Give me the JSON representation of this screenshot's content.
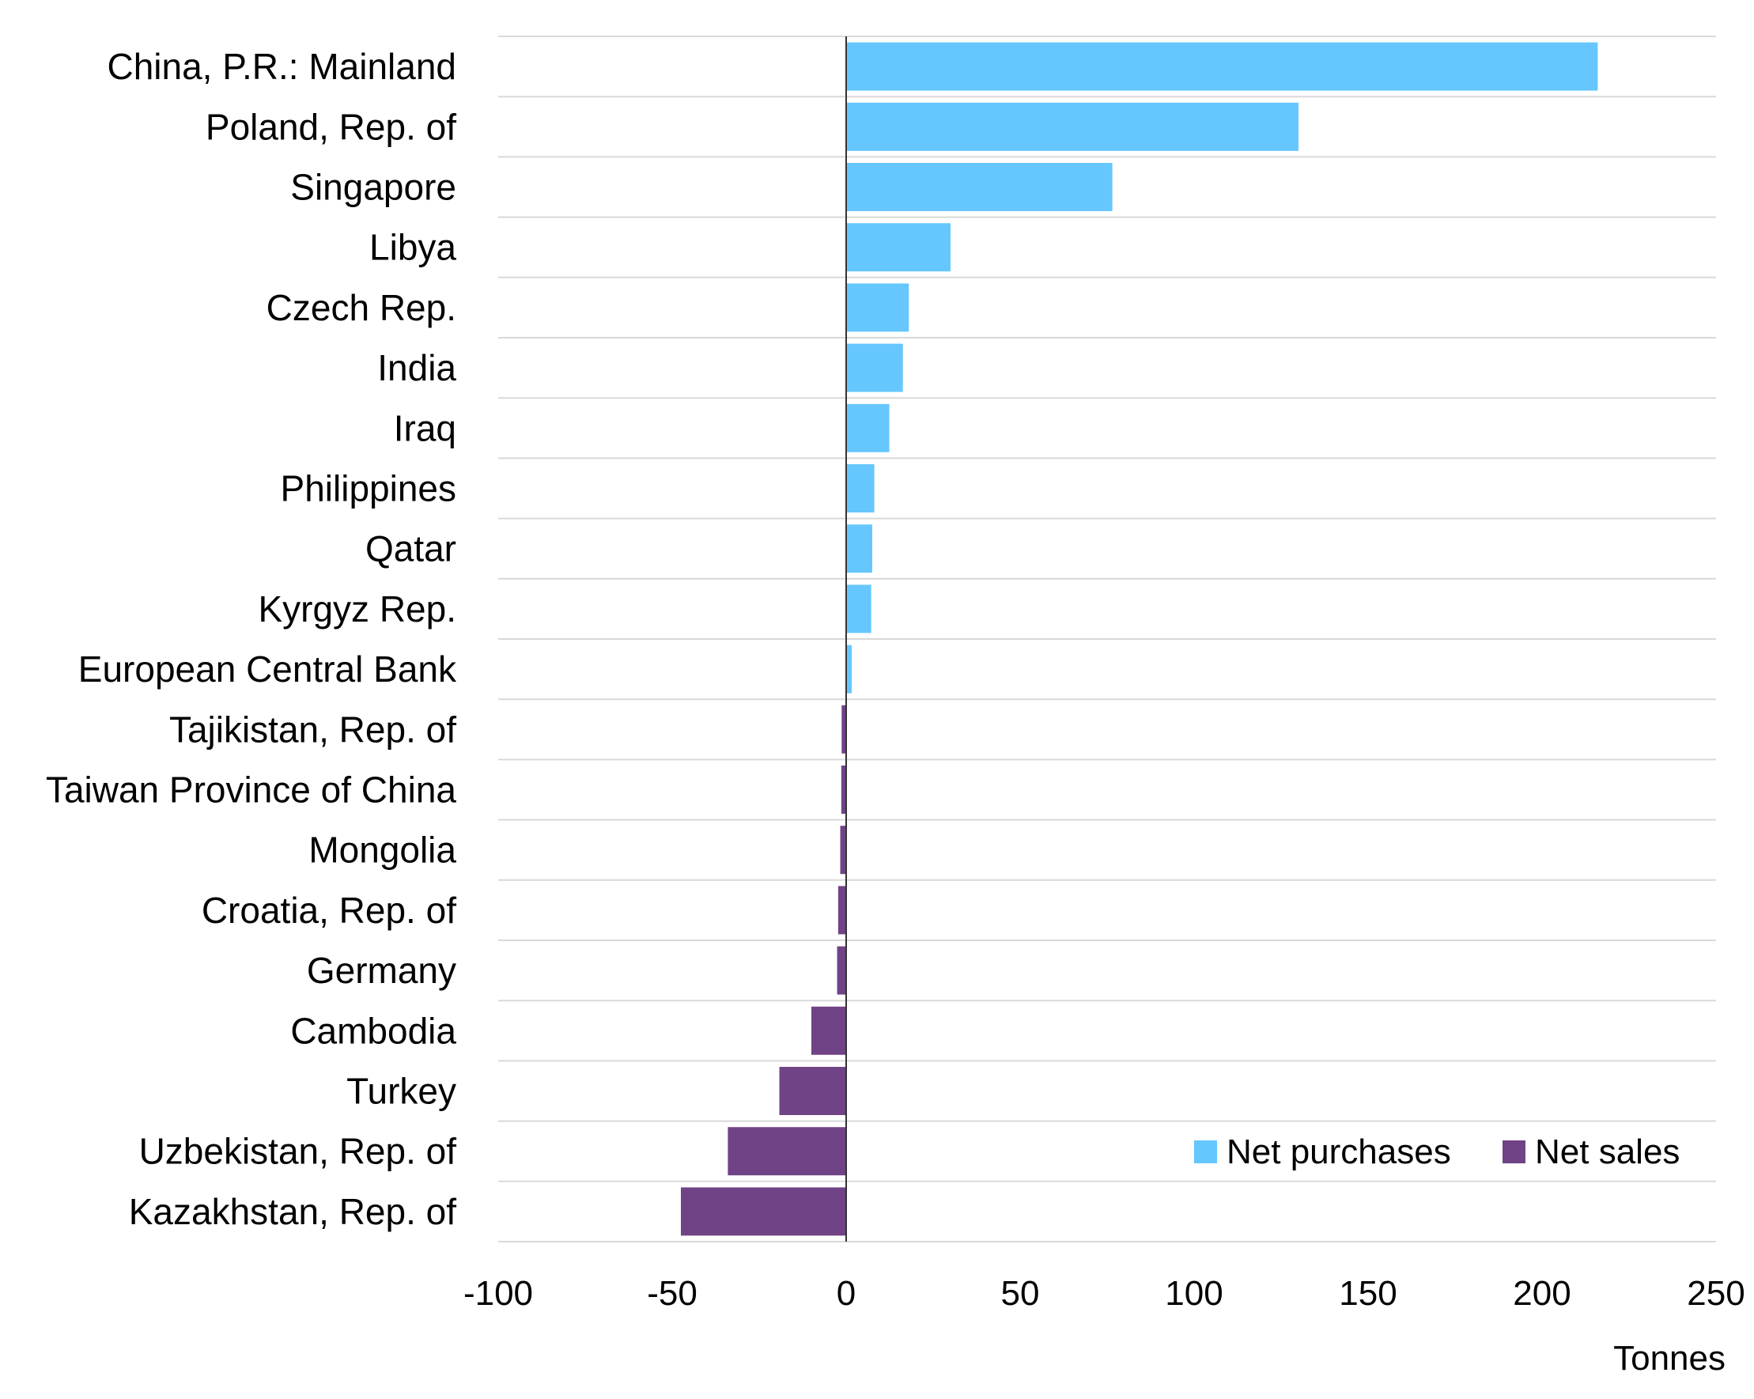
{
  "chart_data": {
    "type": "bar",
    "orientation": "horizontal",
    "title": "",
    "xlabel": "Tonnes",
    "ylabel": "",
    "xlim": [
      -100,
      250
    ],
    "xticks": [
      -100,
      -50,
      0,
      50,
      100,
      150,
      200,
      250
    ],
    "xtick_labels": [
      "-100",
      "-50",
      "0",
      "50",
      "100",
      "150",
      "200",
      "250"
    ],
    "grid": "horizontal row separators",
    "legend_position": "bottom-right",
    "categories": [
      "China, P.R.: Mainland",
      "Poland, Rep. of",
      "Singapore",
      "Libya",
      "Czech Rep.",
      "India",
      "Iraq",
      "Philippines",
      "Qatar",
      "Kyrgyz Rep.",
      "European Central Bank",
      "Tajikistan, Rep. of",
      "Taiwan Province of China",
      "Mongolia",
      "Croatia, Rep. of",
      "Germany",
      "Cambodia",
      "Turkey",
      "Uzbekistan, Rep. of",
      "Kazakhstan, Rep. of"
    ],
    "values": [
      216,
      130,
      76.5,
      30,
      18,
      16.3,
      12.4,
      8.1,
      7.5,
      7.2,
      1.6,
      -1.3,
      -1.4,
      -1.7,
      -2.3,
      -2.6,
      -10,
      -19.2,
      -34,
      -47.5
    ],
    "series": [
      {
        "name": "Net purchases",
        "color": "#66c7ff"
      },
      {
        "name": "Net sales",
        "color": "#704386"
      }
    ]
  }
}
